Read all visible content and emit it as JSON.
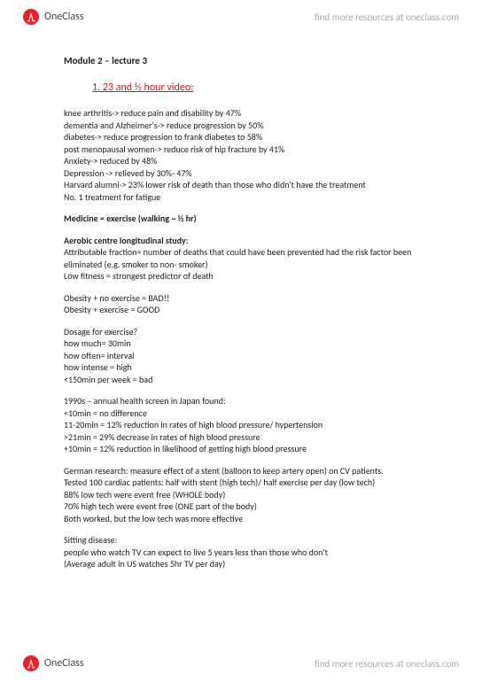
{
  "brand": {
    "name": "OneClass",
    "tagline": "find more resources at oneclass.com"
  },
  "doc": {
    "title": "Module 2 – lecture 3",
    "heading1": "23 and ½ hour video:",
    "p1": {
      "l1": "knee arthritis-> reduce pain and disability by 47%",
      "l2": "dementia and Alzheimer's-> reduce progression by 50%",
      "l3": "diabetes-> reduce progression to frank diabetes to 58%",
      "l4": "post menopausal women-> reduce risk of hip fracture by 41%",
      "l5": "Anxiety-> reduced by 48%",
      "l6": "Depression -> relieved by 30%- 47%",
      "l7": "Harvard alumni-> 23% lower risk of death than those who didn't have the treatment",
      "l8": "No. 1 treatment for fatigue"
    },
    "p2": {
      "l1": "Medicine = exercise (walking ~ ½ hr)"
    },
    "p3": {
      "head": "Aerobic centre longitudinal study:",
      "l1": "Attributable fraction= number of deaths that could have been prevented had the risk factor been eliminated (e.g. smoker to non- smoker)",
      "l2": "Low fitness = strongest predictor of death"
    },
    "p4": {
      "l1": "Obesity + no exercise = BAD!!",
      "l2": "Obesity + exercise = GOOD"
    },
    "p5": {
      "l1": "Dosage for exercise?",
      "l2": "how much= 30min",
      "l3": "how often= interval",
      "l4": "how intense = high",
      "l5": "<150min per week = bad"
    },
    "p6": {
      "l1": "1990s – annual health screen in Japan found:",
      "l2": "<10min = no difference",
      "l3": "11-20min = 12% reduction in rates of high blood pressure/ hypertension",
      "l4": ">21min = 29% decrease in rates of high blood pressure",
      "l5": "+10min = 12% reduction in likelihood of getting high blood pressure"
    },
    "p7": {
      "l1": "German research: measure effect of a stent (balloon to keep artery open) on CV patients.",
      "l2": "Tested 100 cardiac patients: half with stent (high tech)/ half exercise per day (low tech)",
      "l3": "88% low tech were event free (WHOLE body)",
      "l4": "70% high tech were event free (ONE part of the body)",
      "l5": "Both worked, but the low tech was more effective"
    },
    "p8": {
      "l1": "Sitting disease:",
      "l2": "people who watch TV can expect to live 5 years less than those who don't",
      "l3": "(Average adult in US watches 5hr TV per day)"
    }
  }
}
